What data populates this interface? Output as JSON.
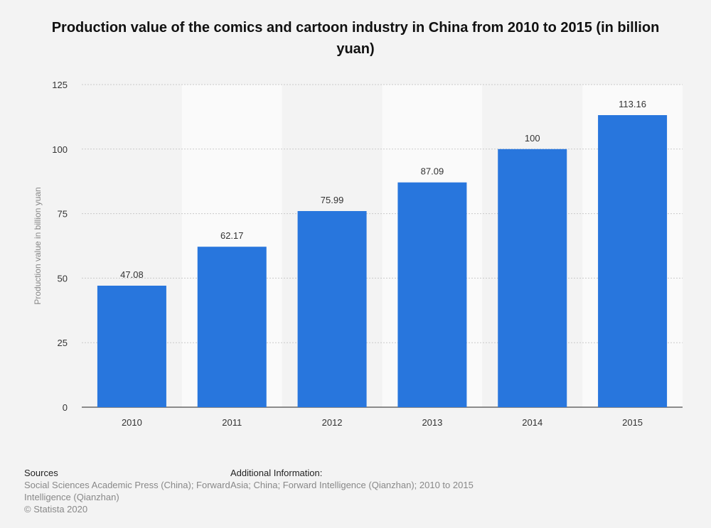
{
  "title": "Production value of the comics and cartoon industry in China from 2010 to 2015 (in billion yuan)",
  "chart_data": {
    "type": "bar",
    "title": "Production value of the comics and cartoon industry in China from 2010 to 2015 (in billion yuan)",
    "categories": [
      "2010",
      "2011",
      "2012",
      "2013",
      "2014",
      "2015"
    ],
    "values": [
      47.08,
      62.17,
      75.99,
      87.09,
      100,
      113.16
    ],
    "data_labels": [
      "47.08",
      "62.17",
      "75.99",
      "87.09",
      "100",
      "113.16"
    ],
    "ylabel": "Production value in billion yuan",
    "xlabel": "",
    "ylim": [
      0,
      125
    ],
    "yticks": [
      0,
      25,
      50,
      75,
      100,
      125
    ],
    "grid": true,
    "bar_color": "#2876dd"
  },
  "footer": {
    "sources_heading": "Sources",
    "sources_lines": [
      "Social Sciences Academic Press (China); Forward",
      "Intelligence (Qianzhan)",
      "© Statista 2020"
    ],
    "info_heading": "Additional Information:",
    "info_lines": [
      "Asia; China; Forward Intelligence (Qianzhan); 2010 to 2015"
    ]
  }
}
